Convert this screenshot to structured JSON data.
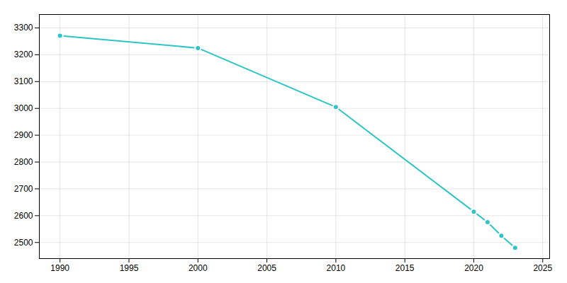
{
  "chart_data": {
    "type": "line",
    "x": [
      1990,
      2000,
      2010,
      2020,
      2021,
      2022,
      2023
    ],
    "values": [
      3271,
      3225,
      3005,
      2615,
      2576,
      2525,
      2480
    ],
    "color": "#2dc5c5",
    "marker": "circle",
    "xlim": [
      1988.5,
      2025.5
    ],
    "ylim": [
      2440,
      3350
    ],
    "xticks": [
      1990,
      1995,
      2000,
      2005,
      2010,
      2015,
      2020,
      2025
    ],
    "yticks": [
      2500,
      2600,
      2700,
      2800,
      2900,
      3000,
      3100,
      3200,
      3300
    ],
    "grid": true
  }
}
